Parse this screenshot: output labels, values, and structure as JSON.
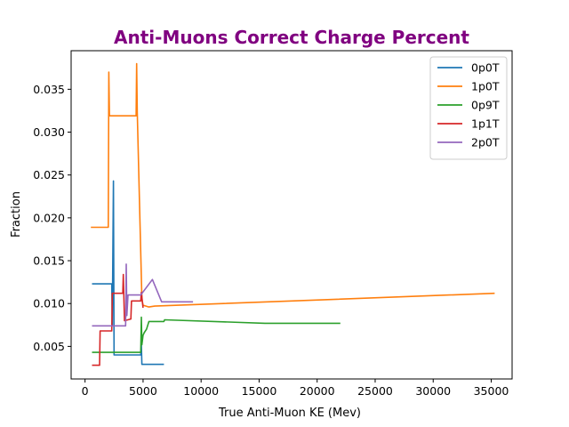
{
  "chart_data": {
    "type": "line",
    "title": "Anti-Muons Correct Charge Percent",
    "title_color": "#800080",
    "xlabel": "True Anti-Muon KE (Mev)",
    "ylabel": "Fraction",
    "xlim": [
      -1200,
      36800
    ],
    "ylim": [
      0.0012,
      0.0395
    ],
    "xticks": [
      0,
      5000,
      10000,
      15000,
      20000,
      25000,
      30000,
      35000
    ],
    "xtick_labels": [
      "0",
      "5000",
      "10000",
      "15000",
      "20000",
      "25000",
      "30000",
      "35000"
    ],
    "yticks": [
      0.005,
      0.01,
      0.015,
      0.02,
      0.025,
      0.03,
      0.035
    ],
    "ytick_labels": [
      "0.005",
      "0.010",
      "0.015",
      "0.020",
      "0.025",
      "0.030",
      "0.035"
    ],
    "grid": false,
    "legend_position": "top-right",
    "series": [
      {
        "name": "0p0T",
        "color": "#1f77b4",
        "x": [
          600,
          2300,
          2350,
          2450,
          2500,
          4800,
          4850,
          4900,
          6800
        ],
        "y": [
          0.0123,
          0.0123,
          0.0075,
          0.0243,
          0.004,
          0.004,
          0.0052,
          0.0029,
          0.0029
        ]
      },
      {
        "name": "1p0T",
        "color": "#ff7f0e",
        "x": [
          500,
          2000,
          2050,
          2100,
          4400,
          4450,
          4500,
          4900,
          5000,
          5500,
          6000,
          35300
        ],
        "y": [
          0.0189,
          0.0189,
          0.037,
          0.0319,
          0.0319,
          0.038,
          0.0323,
          0.0105,
          0.0098,
          0.0096,
          0.0097,
          0.0112
        ]
      },
      {
        "name": "0p9T",
        "color": "#2ca02c",
        "x": [
          600,
          2500,
          4800,
          4850,
          4900,
          5000,
          5100,
          5300,
          5500,
          6800,
          6850,
          15500,
          22000
        ],
        "y": [
          0.0043,
          0.0043,
          0.0043,
          0.0084,
          0.0052,
          0.0063,
          0.0066,
          0.007,
          0.0079,
          0.0079,
          0.0081,
          0.0077,
          0.0077
        ]
      },
      {
        "name": "1p1T",
        "color": "#d62728",
        "x": [
          600,
          1250,
          1300,
          2300,
          2350,
          3250,
          3300,
          3400,
          3950,
          4000,
          4800,
          4850,
          5000
        ],
        "y": [
          0.0028,
          0.0028,
          0.0068,
          0.0068,
          0.0112,
          0.0112,
          0.0134,
          0.008,
          0.0082,
          0.0103,
          0.0103,
          0.0113,
          0.0095
        ]
      },
      {
        "name": "2p0T",
        "color": "#9467bd",
        "x": [
          600,
          2400,
          3500,
          3550,
          3600,
          3700,
          4800,
          5800,
          6600,
          9300
        ],
        "y": [
          0.0074,
          0.0074,
          0.0074,
          0.0146,
          0.0086,
          0.011,
          0.011,
          0.0128,
          0.0102,
          0.0102
        ]
      }
    ]
  }
}
